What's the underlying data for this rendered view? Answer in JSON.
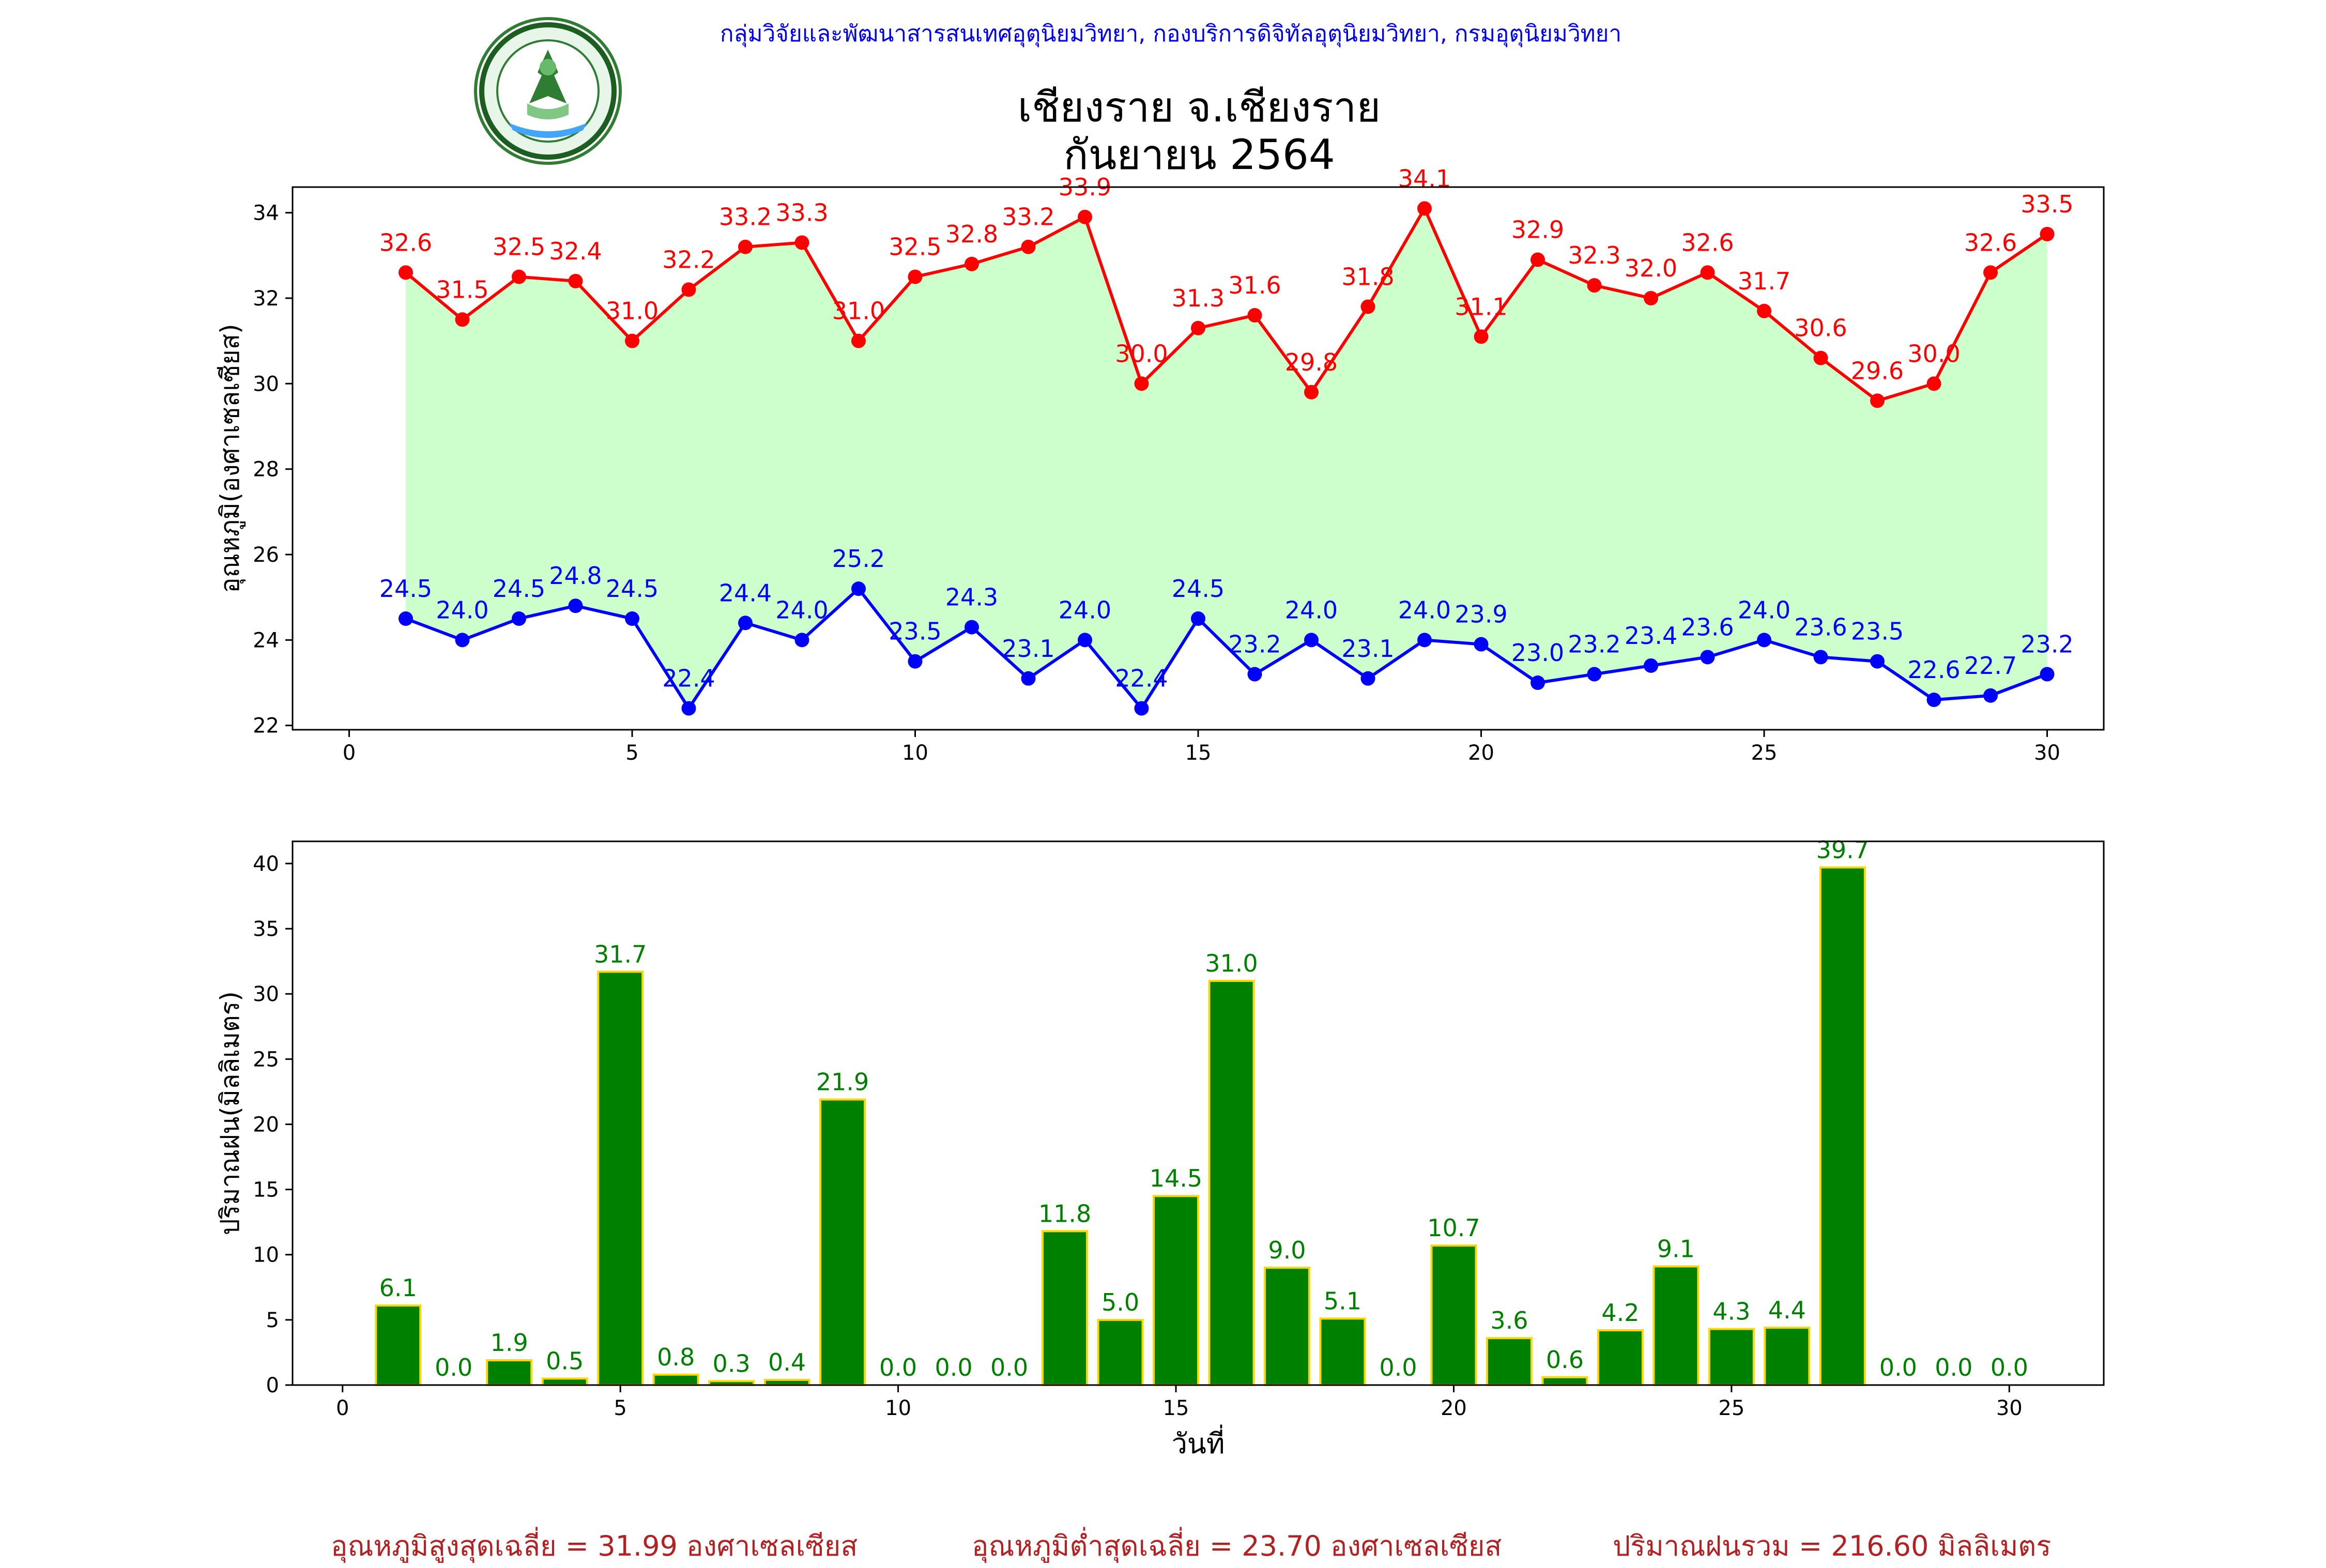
{
  "header": {
    "agency": "กลุ่มวิจัยและพัฒนาสารสนเทศอุตุนิยมวิทยา, กองบริการดิจิทัลอุตุนิยมวิทยา, กรมอุตุนิยมวิทยา",
    "title_line1": "เชียงราย จ.เชียงราย",
    "title_line2": "กันยายน 2564",
    "logo_text": "กรมอุตุนิยมวิทยา",
    "logo_subtext": "METEOROLOGICAL DEPARTMENT"
  },
  "colors": {
    "max_temp": "#ff0000",
    "min_temp": "#0000ff",
    "temp_fill": "#ccffcc",
    "rain_bar": "#008000",
    "rain_edge": "#ffd700",
    "rain_label": "#008000",
    "summary": "#b22222",
    "agency": "#0000ee"
  },
  "chart_data": [
    {
      "type": "line",
      "ylabel": "อุณหภูมิ(องศาเซลเซียส)",
      "xlabel": "",
      "xlim": [
        -1,
        31
      ],
      "ylim": [
        21.9,
        34.6
      ],
      "xticks": [
        0,
        5,
        10,
        15,
        20,
        25,
        30
      ],
      "yticks": [
        22,
        24,
        26,
        28,
        30,
        32,
        34
      ],
      "x": [
        1,
        2,
        3,
        4,
        5,
        6,
        7,
        8,
        9,
        10,
        11,
        12,
        13,
        14,
        15,
        16,
        17,
        18,
        19,
        20,
        21,
        22,
        23,
        24,
        25,
        26,
        27,
        28,
        29,
        30
      ],
      "series": [
        {
          "key": "max",
          "color": "#ff0000",
          "values": [
            32.6,
            31.5,
            32.5,
            32.4,
            31.0,
            32.2,
            33.2,
            33.3,
            31.0,
            32.5,
            32.8,
            33.2,
            33.9,
            30.0,
            31.3,
            31.6,
            29.8,
            31.8,
            34.1,
            31.1,
            32.9,
            32.3,
            32.0,
            32.6,
            31.7,
            30.6,
            29.6,
            30.0,
            32.6,
            33.5
          ]
        },
        {
          "key": "min",
          "color": "#0000ff",
          "values": [
            24.5,
            24.0,
            24.5,
            24.8,
            24.5,
            22.4,
            24.4,
            24.0,
            25.2,
            23.5,
            24.3,
            23.1,
            24.0,
            22.4,
            24.5,
            23.2,
            24.0,
            23.1,
            24.0,
            23.9,
            23.0,
            23.2,
            23.4,
            23.6,
            24.0,
            23.6,
            23.5,
            22.6,
            22.7,
            23.2
          ]
        }
      ]
    },
    {
      "type": "bar",
      "ylabel": "ปริมาณฝน(มิลลิเมตร)",
      "xlabel": "วันที่",
      "xlim": [
        -0.9,
        31.7
      ],
      "ylim": [
        0,
        41.7
      ],
      "xticks": [
        0,
        5,
        10,
        15,
        20,
        25,
        30
      ],
      "yticks": [
        0,
        5,
        10,
        15,
        20,
        25,
        30,
        35,
        40
      ],
      "x": [
        1,
        2,
        3,
        4,
        5,
        6,
        7,
        8,
        9,
        10,
        11,
        12,
        13,
        14,
        15,
        16,
        17,
        18,
        19,
        20,
        21,
        22,
        23,
        24,
        25,
        26,
        27,
        28,
        29,
        30
      ],
      "values": [
        6.1,
        0.0,
        1.9,
        0.5,
        31.7,
        0.8,
        0.3,
        0.4,
        21.9,
        0.0,
        0.0,
        0.0,
        11.8,
        5.0,
        14.5,
        31.0,
        9.0,
        5.1,
        0.0,
        10.7,
        3.6,
        0.6,
        4.2,
        9.1,
        4.3,
        4.4,
        39.7,
        0.0,
        0.0,
        0.0
      ]
    }
  ],
  "summary": {
    "avg_max": "อุณหภูมิสูงสุดเฉลี่ย = 31.99 องศาเซลเซียส",
    "avg_min": "อุณหภูมิต่ำสุดเฉลี่ย = 23.70 องศาเซลเซียส",
    "total_rain": "ปริมาณฝนรวม = 216.60 มิลลิเมตร"
  }
}
